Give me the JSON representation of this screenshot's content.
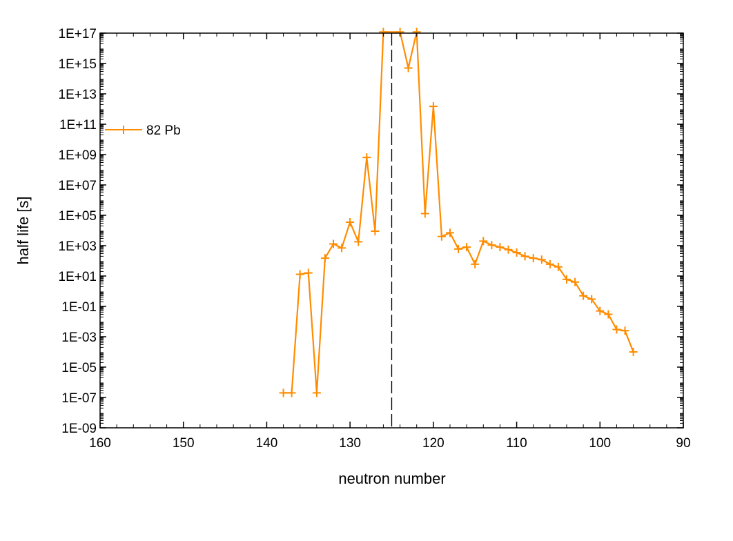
{
  "chart_data": {
    "type": "line",
    "xlabel": "neutron number",
    "ylabel": "half life [s]",
    "xlim": [
      160,
      90
    ],
    "x_reversed": true,
    "x_ticks": [
      160,
      150,
      140,
      130,
      120,
      110,
      100,
      90
    ],
    "x_tick_labels": [
      "160",
      "150",
      "140",
      "130",
      "120",
      "110",
      "100",
      "90"
    ],
    "ylim": [
      1e-09,
      1e+17
    ],
    "y_scale": "log",
    "y_ticks": [
      1e-09,
      1e-07,
      1e-05,
      0.001,
      0.1,
      10.0,
      1000.0,
      100000.0,
      10000000.0,
      1000000000.0,
      100000000000.0,
      10000000000000.0,
      1000000000000000.0,
      1e+17
    ],
    "y_tick_labels": [
      "1E-09",
      "1E-07",
      "1E-05",
      "1E-03",
      "1E-01",
      "1E+01",
      "1E+03",
      "1E+05",
      "1E+07",
      "1E+09",
      "1E+11",
      "1E+13",
      "1E+15",
      "1E+17"
    ],
    "grid": false,
    "legend_position": "left",
    "reference_line": {
      "x": 125,
      "style": "dashed",
      "color": "#000000"
    },
    "series": [
      {
        "name": "82 Pb",
        "color": "#ff8c00",
        "marker": "plus",
        "x": [
          138,
          137,
          136,
          135,
          134,
          133,
          132,
          131,
          130,
          129,
          128,
          127,
          126,
          124,
          123,
          122,
          121,
          120,
          119,
          118,
          117,
          116,
          115,
          114,
          113,
          112,
          111,
          110,
          109,
          108,
          107,
          106,
          105,
          104,
          103,
          102,
          101,
          100,
          99,
          98,
          97,
          96
        ],
        "y": [
          2e-07,
          2e-07,
          13,
          16,
          2e-07,
          150,
          1300,
          700,
          35000,
          1800,
          650000000.0,
          9000,
          1.2e+17,
          1.2e+17,
          500000000000000.0,
          1.2e+17,
          130000.0,
          1500000000000.0,
          4000,
          7000,
          600,
          800,
          60,
          2000,
          1100,
          800,
          550,
          350,
          200,
          150,
          120,
          60,
          40,
          6,
          4,
          0.5,
          0.3,
          0.05,
          0.03,
          0.003,
          0.0025,
          0.0001
        ]
      }
    ]
  }
}
